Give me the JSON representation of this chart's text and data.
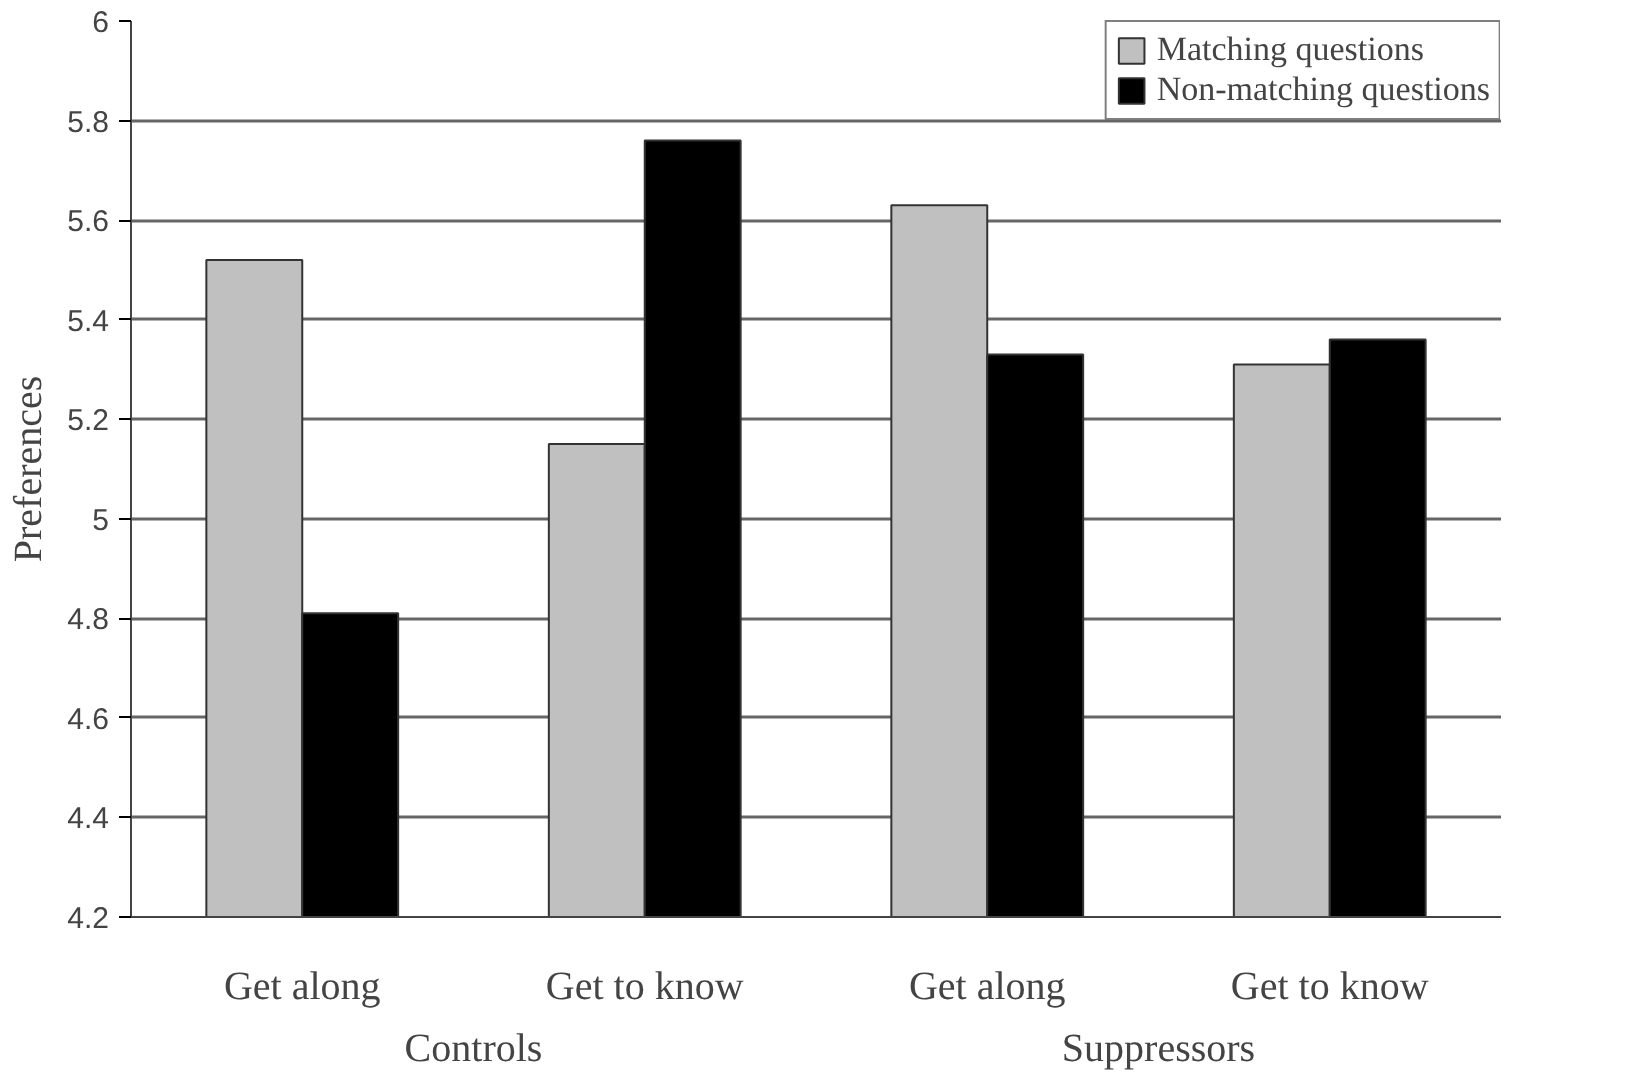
{
  "chart_data": {
    "type": "bar",
    "ylabel": "Preferences",
    "categories": [
      "Get along",
      "Get to know",
      "Get along",
      "Get to know"
    ],
    "annotations": [
      "Controls",
      "Suppressors"
    ],
    "series": [
      {
        "name": "Matching questions",
        "color": "#c0c0c0",
        "values": [
          5.52,
          5.15,
          5.63,
          5.31
        ]
      },
      {
        "name": "Non-matching questions",
        "color": "#000000",
        "values": [
          4.81,
          5.76,
          5.33,
          5.36
        ]
      }
    ],
    "ylim": [
      4.2,
      6
    ],
    "yticks": [
      4.2,
      4.4,
      4.6,
      4.8,
      5,
      5.2,
      5.4,
      5.6,
      5.8,
      6
    ],
    "grid": "y",
    "legend": "top right"
  }
}
